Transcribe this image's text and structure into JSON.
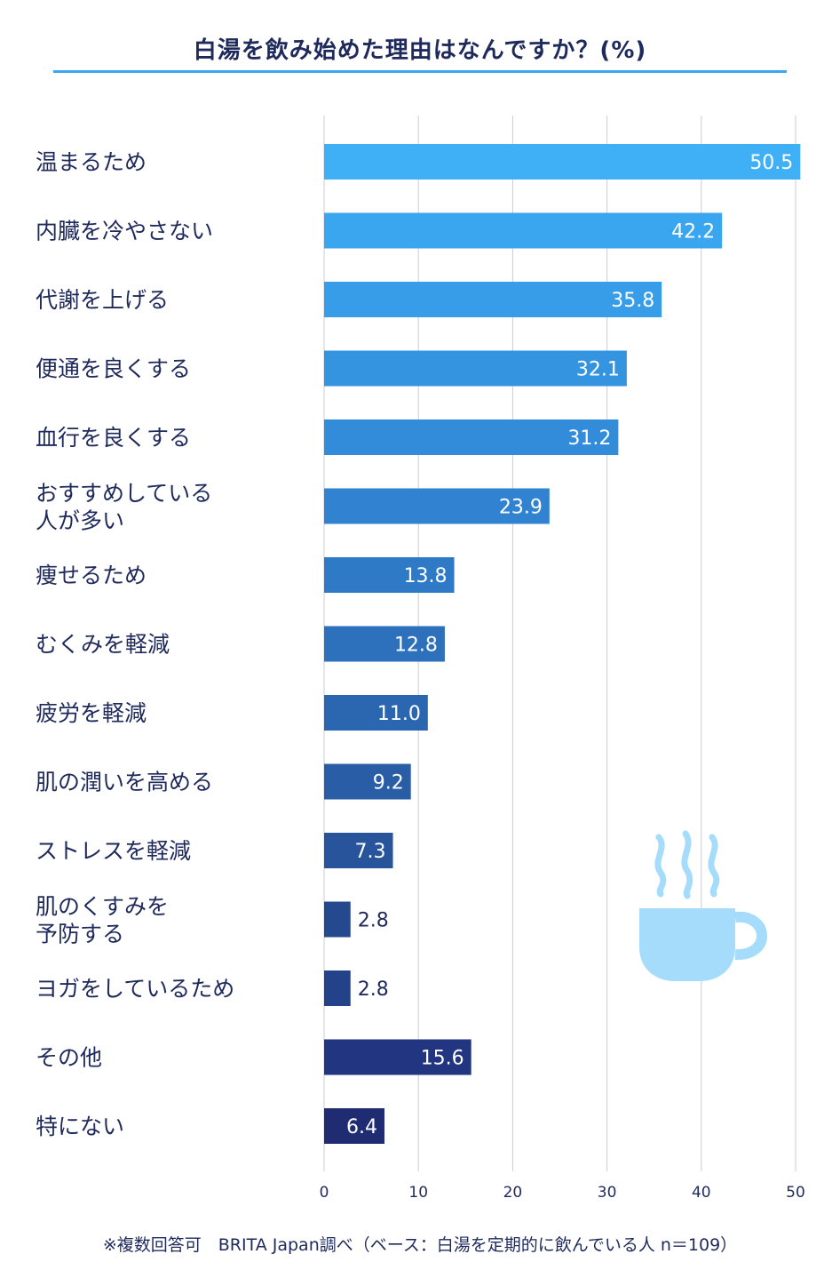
{
  "chart_data": {
    "type": "bar",
    "orientation": "horizontal",
    "title": "白湯を飲み始めた理由はなんですか？(%)",
    "categories": [
      "温まるため",
      "内臓を冷やさない",
      "代謝を上げる",
      "便通を良くする",
      "血行を良くする",
      "おすすめしている\n人が多い",
      "痩せるため",
      "むくみを軽減",
      "疲労を軽減",
      "肌の潤いを高める",
      "ストレスを軽減",
      "肌のくすみを\n予防する",
      "ヨガをしているため",
      "その他",
      "特にない"
    ],
    "values": [
      50.5,
      42.2,
      35.8,
      32.1,
      31.2,
      23.9,
      13.8,
      12.8,
      11.0,
      9.2,
      7.3,
      2.8,
      2.8,
      15.6,
      6.4
    ],
    "value_labels": [
      "50.5",
      "42.2",
      "35.8",
      "32.1",
      "31.2",
      "23.9",
      "13.8",
      "12.8",
      "11.0",
      "9.2",
      "7.3",
      "2.8",
      "2.8",
      "15.6",
      "6.4"
    ],
    "bar_colors": [
      "#3fb0f6",
      "#3aa6f0",
      "#379de8",
      "#3594e0",
      "#338cd9",
      "#3183d1",
      "#2f7ac7",
      "#2d70bc",
      "#2b67b1",
      "#295da6",
      "#27549b",
      "#25498f",
      "#24428a",
      "#223580",
      "#1f2c72"
    ],
    "xlim": [
      0,
      50
    ],
    "xticks": [
      0,
      10,
      20,
      30,
      40,
      50
    ],
    "xtick_labels": [
      "0",
      "10",
      "20",
      "30",
      "40",
      "50"
    ],
    "grid": true,
    "xlabel": "",
    "ylabel": ""
  },
  "footnote": "※複数回答可　BRITA Japan調べ（ベース：白湯を定期的に飲んでいる人  n＝109）",
  "decoration": {
    "icon": "coffee-cup-icon",
    "color": "#a6dcfb"
  }
}
